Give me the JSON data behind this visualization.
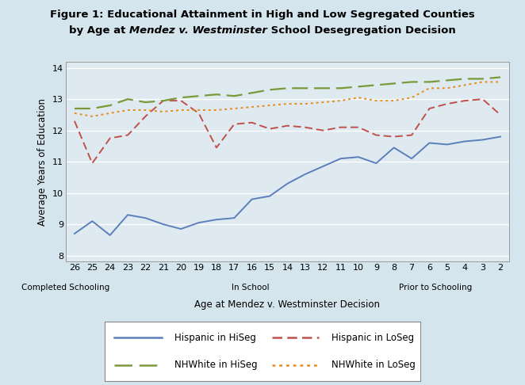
{
  "title_line1": "Figure 1: Educational Attainment in High and Low Segregated Counties",
  "title_line2_pre": "by Age at ",
  "title_line2_italic": "Mendez v. Westminster",
  "title_line2_post": " School Desegregation Decision",
  "xlabel": "Age at Mendez v. Westminster Decision",
  "ylabel": "Average Years of Education",
  "xlabels": [
    26,
    25,
    24,
    23,
    22,
    21,
    20,
    19,
    18,
    17,
    16,
    15,
    14,
    13,
    12,
    11,
    10,
    9,
    8,
    7,
    6,
    5,
    4,
    3,
    2
  ],
  "sublabel_completed": "Completed Schooling",
  "sublabel_inschool": "In School",
  "sublabel_prior": "Prior to Schooling",
  "sublabel_completed_idx": 0,
  "sublabel_inschool_idx": 10,
  "sublabel_prior_idx": 20,
  "ylim": [
    7.8,
    14.2
  ],
  "yticks": [
    8,
    9,
    10,
    11,
    12,
    13,
    14
  ],
  "background_color": "#d5e5ee",
  "plot_bg_color": "#deeaf0",
  "hispanic_hiseg": [
    8.7,
    9.1,
    8.65,
    9.3,
    9.2,
    9.0,
    8.85,
    9.05,
    9.15,
    9.2,
    9.8,
    9.9,
    10.3,
    10.6,
    10.85,
    11.1,
    11.15,
    10.95,
    11.45,
    11.1,
    11.6,
    11.55,
    11.65,
    11.7,
    11.8
  ],
  "hispanic_loseg": [
    12.3,
    10.95,
    11.75,
    11.85,
    12.45,
    12.95,
    12.95,
    12.55,
    11.45,
    12.2,
    12.25,
    12.05,
    12.15,
    12.1,
    12.0,
    12.1,
    12.1,
    11.85,
    11.8,
    11.85,
    12.7,
    12.85,
    12.95,
    13.0,
    12.5
  ],
  "nhwhite_hiseg": [
    12.7,
    12.7,
    12.8,
    13.0,
    12.9,
    12.95,
    13.05,
    13.1,
    13.15,
    13.1,
    13.2,
    13.3,
    13.35,
    13.35,
    13.35,
    13.35,
    13.4,
    13.45,
    13.5,
    13.55,
    13.55,
    13.6,
    13.65,
    13.65,
    13.7
  ],
  "nhwhite_loseg": [
    12.55,
    12.45,
    12.55,
    12.65,
    12.65,
    12.6,
    12.65,
    12.65,
    12.65,
    12.7,
    12.75,
    12.8,
    12.85,
    12.85,
    12.9,
    12.95,
    13.05,
    12.95,
    12.95,
    13.05,
    13.35,
    13.35,
    13.45,
    13.55,
    13.55
  ],
  "color_hispanic_hiseg": "#5b7fbb",
  "color_hispanic_loseg": "#c0504d",
  "color_nhwhite_hiseg": "#7a9a3a",
  "color_nhwhite_loseg": "#e88a1a",
  "title_fontsize": 9.5,
  "axis_fontsize": 8.5,
  "tick_fontsize": 8,
  "legend_fontsize": 8.5
}
